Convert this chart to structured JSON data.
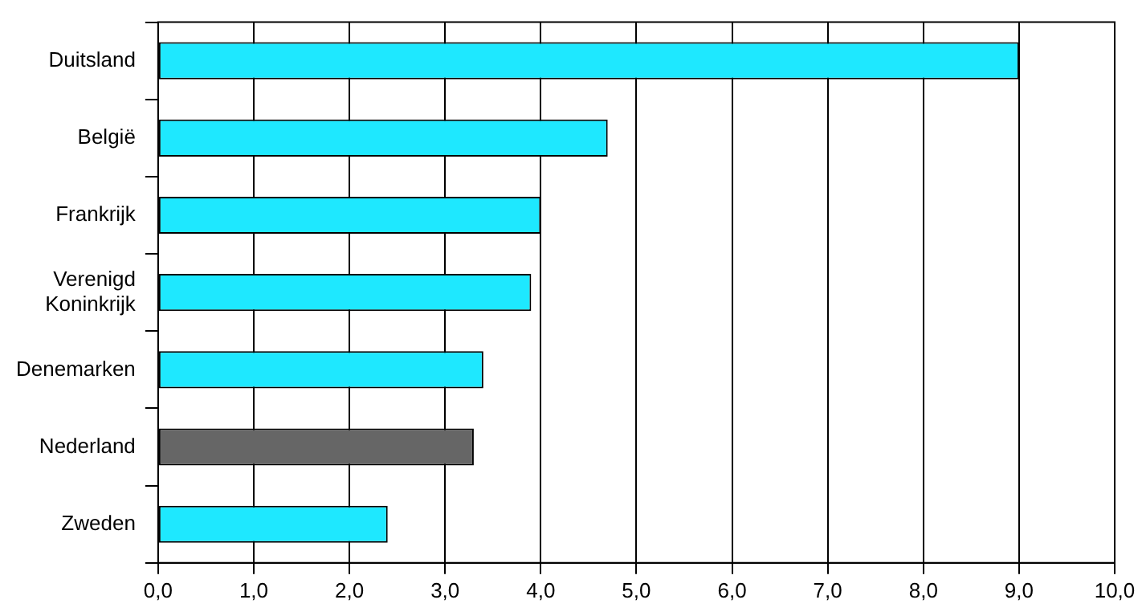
{
  "chart_data": {
    "type": "bar",
    "orientation": "horizontal",
    "categories": [
      "Duitsland",
      "België",
      "Frankrijk",
      "Verenigd Koninkrijk",
      "Denemarken",
      "Nederland",
      "Zweden"
    ],
    "values": [
      9.0,
      4.7,
      4.0,
      3.9,
      3.4,
      3.3,
      2.4
    ],
    "colors": [
      "#1ee8ff",
      "#1ee8ff",
      "#1ee8ff",
      "#1ee8ff",
      "#1ee8ff",
      "#666666",
      "#1ee8ff"
    ],
    "xlim": [
      0,
      10
    ],
    "xticks": [
      {
        "value": 0,
        "label": "0,0"
      },
      {
        "value": 1,
        "label": "1,0"
      },
      {
        "value": 2,
        "label": "2,0"
      },
      {
        "value": 3,
        "label": "3,0"
      },
      {
        "value": 4,
        "label": "4,0"
      },
      {
        "value": 5,
        "label": "5,0"
      },
      {
        "value": 6,
        "label": "6,0"
      },
      {
        "value": 7,
        "label": "7,0"
      },
      {
        "value": 8,
        "label": "8,0"
      },
      {
        "value": 9,
        "label": "9,0"
      },
      {
        "value": 10,
        "label": "10,0"
      }
    ],
    "grid": "x",
    "legend": false
  }
}
